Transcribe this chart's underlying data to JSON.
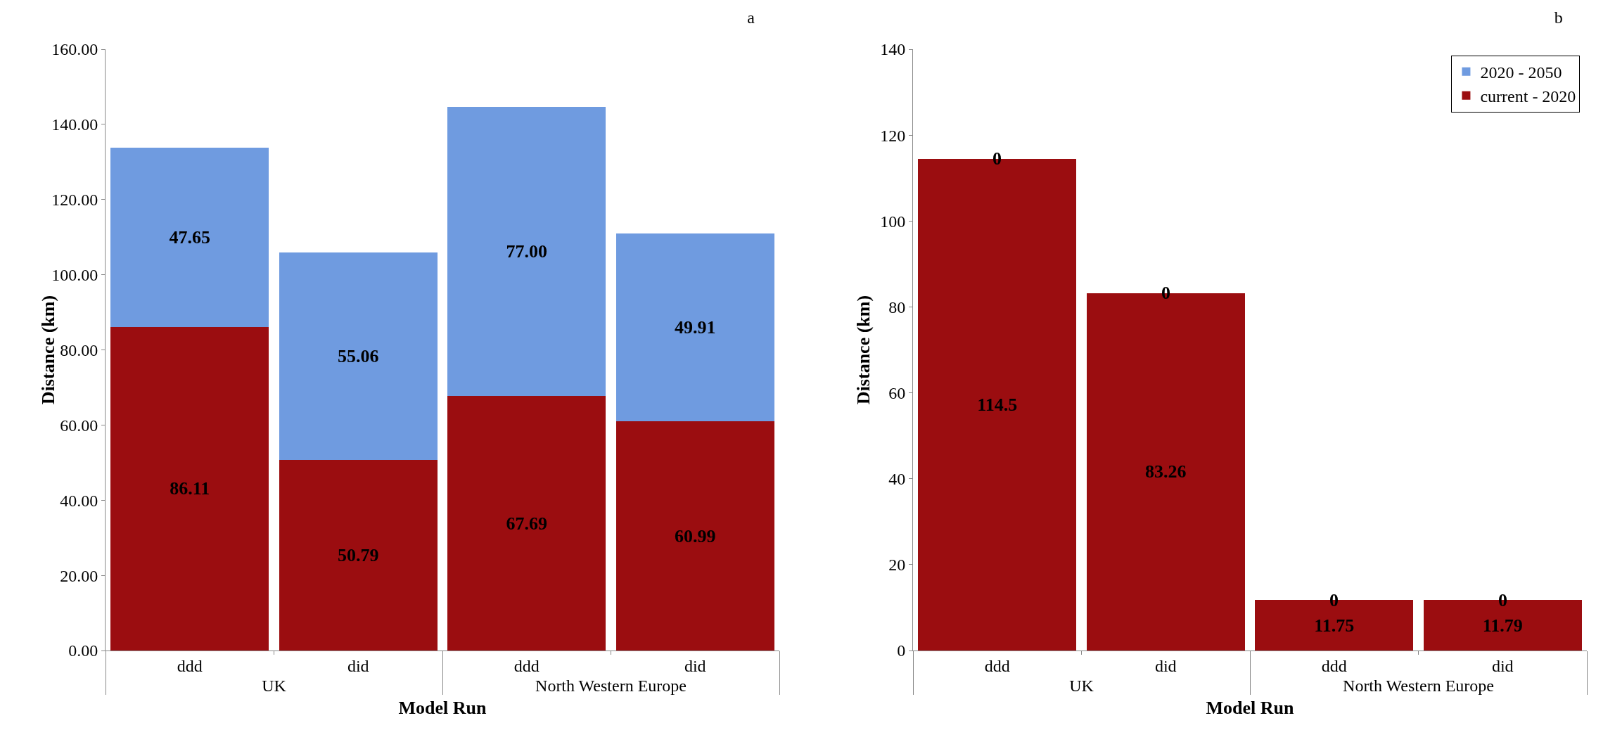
{
  "chart_data": [
    {
      "type": "bar",
      "title": "a",
      "xlabel": "Model Run",
      "ylabel": "Distance (km)",
      "categories": [
        "ddd",
        "did",
        "ddd",
        "did"
      ],
      "annotations": [
        "UK",
        "North Western Europe"
      ],
      "stacked": true,
      "series": [
        {
          "color": "#9b0d10",
          "values": [
            86.11,
            50.79,
            67.69,
            60.99
          ],
          "value_labels": [
            "86.11",
            "50.79",
            "67.69",
            "60.99"
          ]
        },
        {
          "color": "#6f9be0",
          "values": [
            47.65,
            55.06,
            77.0,
            49.91
          ],
          "value_labels": [
            "47.65",
            "55.06",
            "77.00",
            "49.91"
          ]
        }
      ],
      "ylim": [
        0,
        160
      ],
      "yticks": [
        {
          "value": 0,
          "label": "0.00"
        },
        {
          "value": 20,
          "label": "20.00"
        },
        {
          "value": 40,
          "label": "40.00"
        },
        {
          "value": 60,
          "label": "60.00"
        },
        {
          "value": 80,
          "label": "80.00"
        },
        {
          "value": 100,
          "label": "100.00"
        },
        {
          "value": 120,
          "label": "120.00"
        },
        {
          "value": 140,
          "label": "140.00"
        },
        {
          "value": 160,
          "label": "160.00"
        }
      ],
      "grid": false,
      "legend": false
    },
    {
      "type": "bar",
      "title": "b",
      "xlabel": "Model Run",
      "ylabel": "Distance (km)",
      "categories": [
        "ddd",
        "did",
        "ddd",
        "did"
      ],
      "annotations": [
        "UK",
        "North Western Europe"
      ],
      "stacked": true,
      "data_labels": true,
      "series": [
        {
          "name": "current - 2020",
          "color": "#9b0d10",
          "values": [
            114.5,
            83.26,
            11.75,
            11.79
          ]
        },
        {
          "name": "2020 - 2050",
          "color": "#6f9be0",
          "values": [
            0,
            0,
            0,
            0
          ]
        }
      ],
      "ylim": [
        0,
        140
      ],
      "yticks": [
        0,
        20,
        40,
        60,
        80,
        100,
        120,
        140
      ],
      "grid": false,
      "legend": "top right"
    }
  ]
}
